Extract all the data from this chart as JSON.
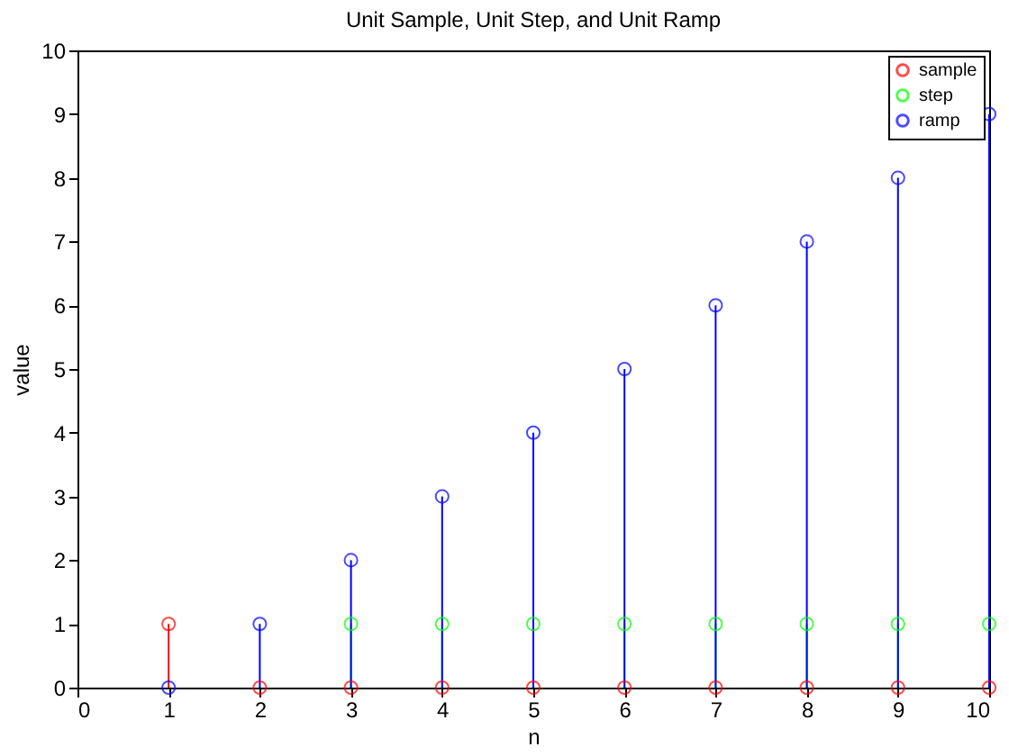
{
  "chart_data": {
    "type": "lollipop",
    "title": "Unit Sample, Unit Step, and Unit Ramp",
    "xlabel": "n",
    "ylabel": "value",
    "x": [
      1,
      2,
      3,
      4,
      5,
      6,
      7,
      8,
      9,
      10
    ],
    "series": [
      {
        "name": "sample",
        "color": "#ff0000",
        "values": [
          1,
          0,
          0,
          0,
          0,
          0,
          0,
          0,
          0,
          0
        ]
      },
      {
        "name": "step",
        "color": "#00ff00",
        "values": [
          null,
          null,
          1,
          1,
          1,
          1,
          1,
          1,
          1,
          1
        ]
      },
      {
        "name": "ramp",
        "color": "#0000ff",
        "values": [
          0,
          1,
          2,
          3,
          4,
          5,
          6,
          7,
          8,
          9
        ]
      }
    ],
    "xlim": [
      0,
      10
    ],
    "xticks": [
      0,
      1,
      2,
      3,
      4,
      5,
      6,
      7,
      8,
      9,
      10
    ],
    "ylim": [
      0,
      10
    ],
    "yticks": [
      0,
      1,
      2,
      3,
      4,
      5,
      6,
      7,
      8,
      9,
      10
    ],
    "grid": false,
    "legend": "top right",
    "marker": "circle",
    "line_style": "solid"
  }
}
